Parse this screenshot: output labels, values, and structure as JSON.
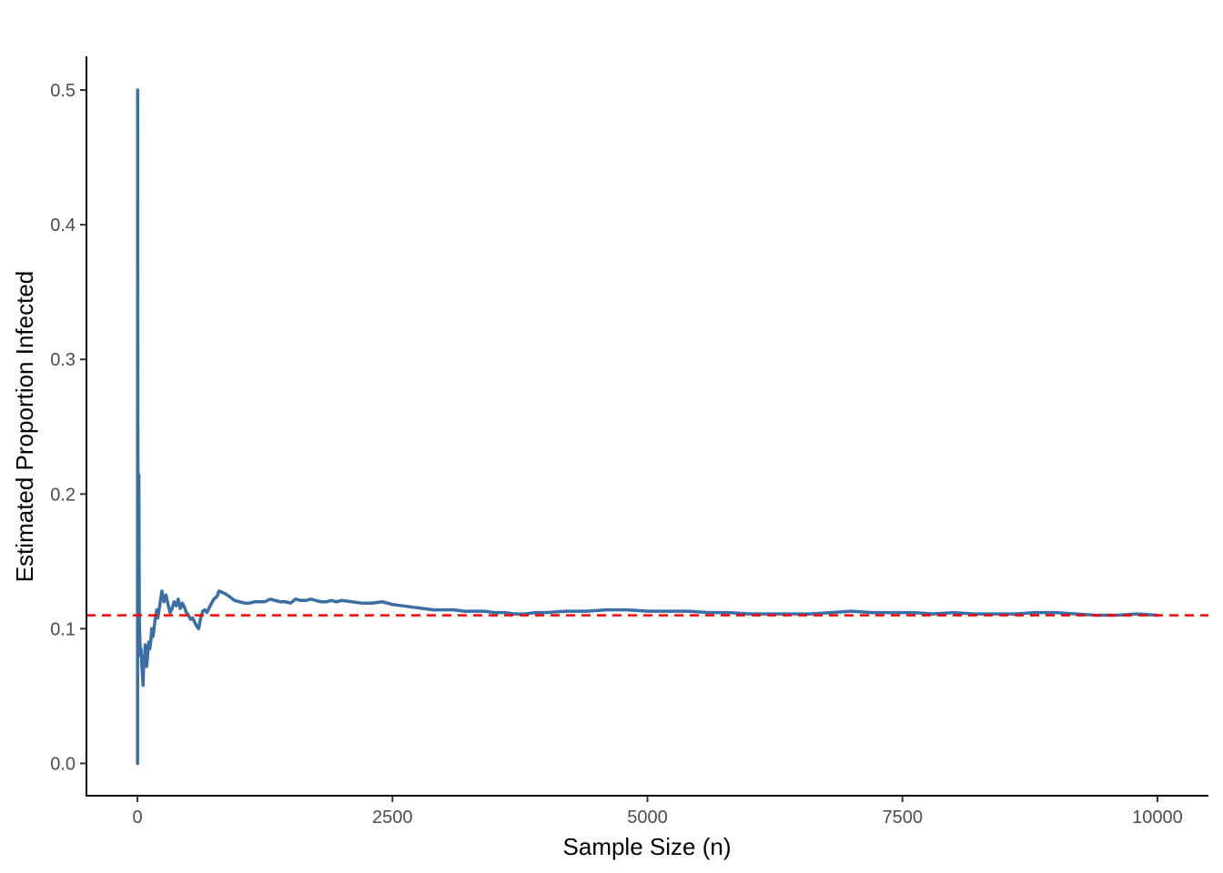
{
  "chart_data": {
    "type": "line",
    "title": "",
    "xlabel": "Sample Size (n)",
    "ylabel": "Estimated Proportion Infected",
    "xlim": [
      -500,
      10500
    ],
    "ylim": [
      -0.024,
      0.525
    ],
    "x_ticks": [
      0,
      2500,
      5000,
      7500,
      10000
    ],
    "x_tick_labels": [
      "0",
      "2500",
      "5000",
      "7500",
      "10000"
    ],
    "y_ticks": [
      0.0,
      0.1,
      0.2,
      0.3,
      0.4,
      0.5
    ],
    "y_tick_labels": [
      "0.0",
      "0.1",
      "0.2",
      "0.3",
      "0.4",
      "0.5"
    ],
    "grid": false,
    "legend": "none",
    "reference_line": {
      "y": 0.11,
      "style": "dashed",
      "color": "#ff0000"
    },
    "series": [
      {
        "color": "#3b6ea5",
        "x": [
          1,
          2,
          3,
          4,
          5,
          6,
          7,
          8,
          10,
          12,
          14,
          16,
          18,
          20,
          25,
          30,
          35,
          40,
          45,
          50,
          55,
          60,
          65,
          70,
          75,
          80,
          90,
          100,
          110,
          120,
          130,
          140,
          150,
          160,
          170,
          180,
          190,
          200,
          220,
          240,
          260,
          280,
          300,
          320,
          340,
          360,
          380,
          400,
          420,
          440,
          460,
          480,
          500,
          520,
          540,
          560,
          580,
          600,
          620,
          640,
          660,
          680,
          700,
          720,
          750,
          780,
          800,
          830,
          860,
          900,
          950,
          1000,
          1050,
          1100,
          1150,
          1200,
          1250,
          1300,
          1350,
          1400,
          1450,
          1500,
          1550,
          1600,
          1650,
          1700,
          1750,
          1800,
          1850,
          1900,
          1950,
          2000,
          2100,
          2200,
          2300,
          2400,
          2500,
          2600,
          2700,
          2800,
          2900,
          3000,
          3100,
          3200,
          3300,
          3400,
          3500,
          3600,
          3700,
          3800,
          3900,
          4000,
          4200,
          4400,
          4600,
          4800,
          5000,
          5200,
          5400,
          5600,
          5800,
          6000,
          6200,
          6400,
          6600,
          6800,
          7000,
          7200,
          7400,
          7600,
          7800,
          8000,
          8200,
          8400,
          8600,
          8800,
          9000,
          9200,
          9400,
          9600,
          9800,
          10000
        ],
        "y": [
          0.0,
          0.5,
          0.333,
          0.25,
          0.2,
          0.167,
          0.143,
          0.125,
          0.1,
          0.083,
          0.214,
          0.15,
          0.12,
          0.1,
          0.09,
          0.08,
          0.085,
          0.078,
          0.07,
          0.065,
          0.058,
          0.07,
          0.08,
          0.075,
          0.088,
          0.085,
          0.072,
          0.08,
          0.09,
          0.085,
          0.09,
          0.1,
          0.094,
          0.098,
          0.105,
          0.11,
          0.114,
          0.108,
          0.118,
          0.128,
          0.12,
          0.125,
          0.118,
          0.112,
          0.115,
          0.12,
          0.117,
          0.122,
          0.115,
          0.119,
          0.116,
          0.112,
          0.11,
          0.107,
          0.108,
          0.105,
          0.102,
          0.1,
          0.108,
          0.113,
          0.114,
          0.112,
          0.115,
          0.118,
          0.122,
          0.124,
          0.128,
          0.127,
          0.126,
          0.124,
          0.121,
          0.12,
          0.119,
          0.119,
          0.12,
          0.12,
          0.12,
          0.122,
          0.121,
          0.12,
          0.12,
          0.119,
          0.122,
          0.121,
          0.121,
          0.122,
          0.121,
          0.12,
          0.12,
          0.121,
          0.12,
          0.121,
          0.12,
          0.119,
          0.119,
          0.12,
          0.118,
          0.117,
          0.116,
          0.115,
          0.114,
          0.114,
          0.114,
          0.113,
          0.113,
          0.113,
          0.112,
          0.112,
          0.111,
          0.111,
          0.112,
          0.112,
          0.113,
          0.113,
          0.114,
          0.114,
          0.113,
          0.113,
          0.113,
          0.112,
          0.112,
          0.111,
          0.111,
          0.111,
          0.111,
          0.112,
          0.113,
          0.112,
          0.112,
          0.112,
          0.111,
          0.112,
          0.111,
          0.111,
          0.111,
          0.112,
          0.112,
          0.111,
          0.11,
          0.11,
          0.111,
          0.11
        ]
      }
    ]
  }
}
